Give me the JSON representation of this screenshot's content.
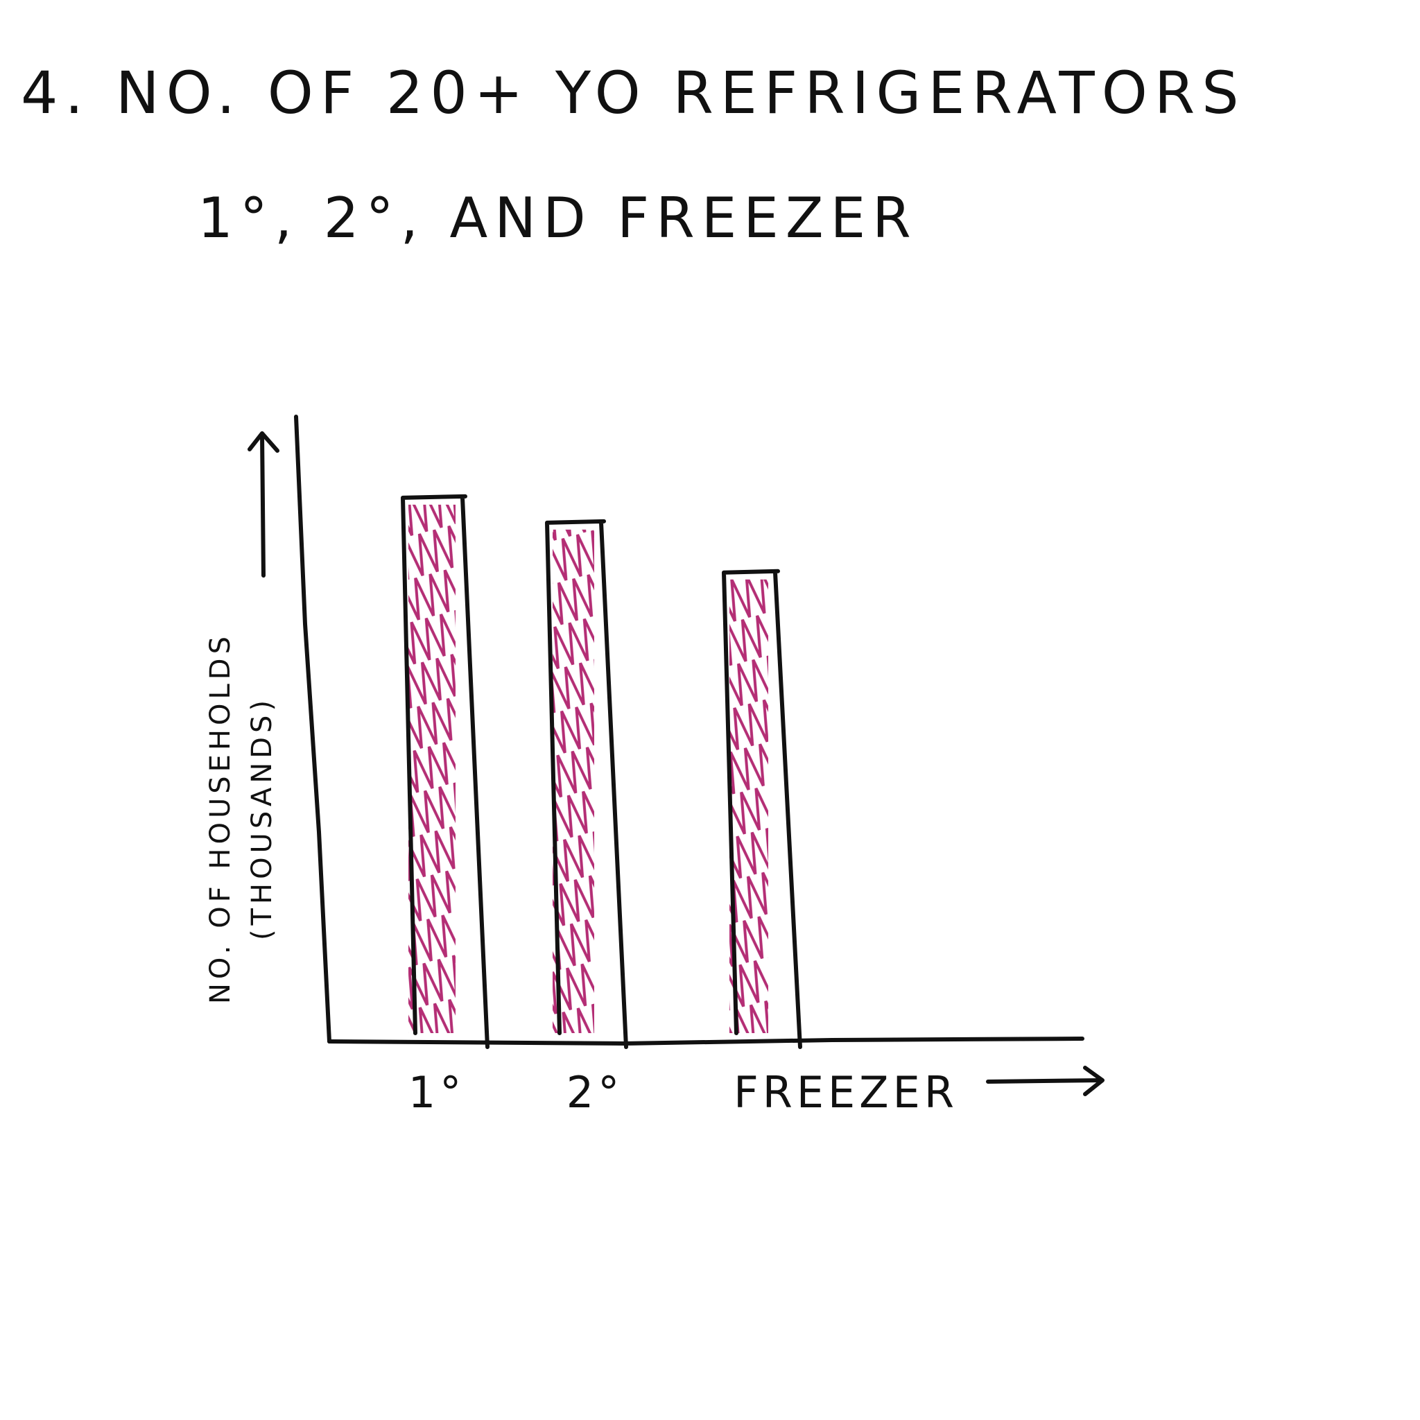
{
  "chart_data": {
    "type": "bar",
    "title": "4. NO. OF 20+ YO REFRIGERATORS",
    "subtitle": "1°, 2°, AND FREEZER",
    "ylabel": [
      "NO. OF HOUSEHOLDS",
      "(THOUSANDS)"
    ],
    "categories": [
      "1°",
      "2°",
      "FREEZER"
    ],
    "values": [
      87,
      83,
      75
    ],
    "color": "#b0236e",
    "ylim": [
      0,
      100
    ]
  }
}
